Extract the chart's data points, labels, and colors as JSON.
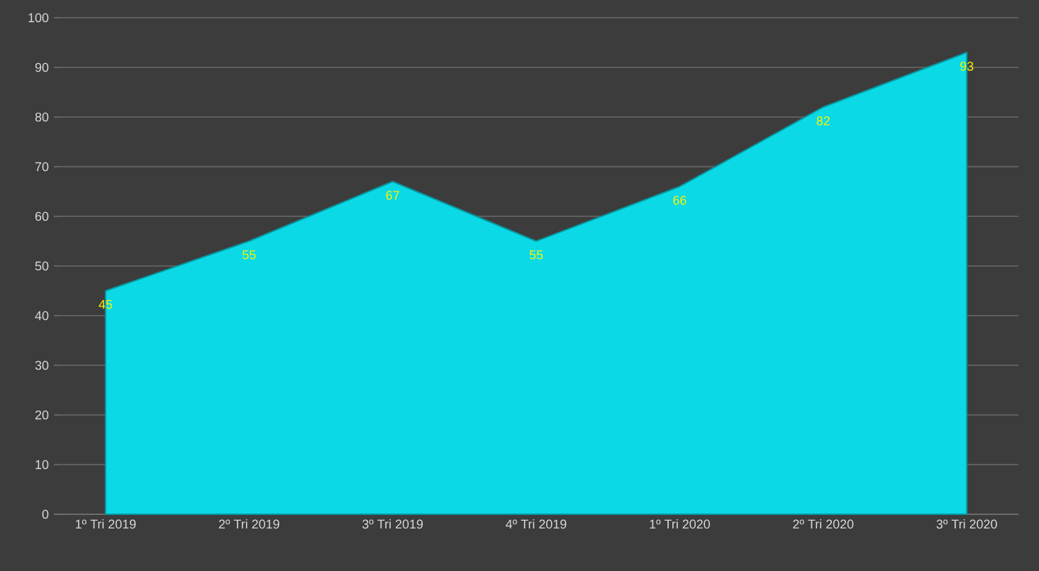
{
  "chart_data": {
    "type": "area",
    "categories": [
      "1º Tri 2019",
      "2º Tri 2019",
      "3º Tri 2019",
      "4º Tri 2019",
      "1º Tri 2020",
      "2º Tri 2020",
      "3º Tri 2020"
    ],
    "values": [
      45,
      55,
      67,
      55,
      66,
      82,
      93
    ],
    "color": "#0bd9e6",
    "value_labels": [
      "45",
      "55",
      "67",
      "55",
      "66",
      "82",
      "93"
    ],
    "ylim": [
      0,
      100
    ],
    "yticks": [
      0,
      10,
      20,
      30,
      40,
      50,
      60,
      70,
      80,
      90,
      100
    ],
    "grid": "y"
  }
}
